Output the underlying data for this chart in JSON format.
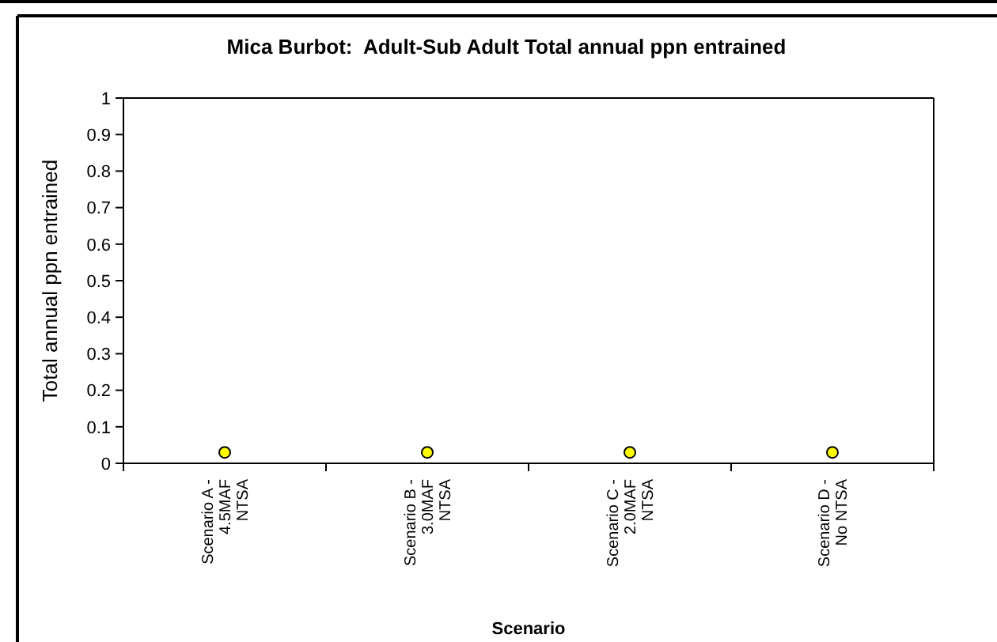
{
  "chart_data": {
    "type": "scatter",
    "title": "Mica Burbot:  Adult-Sub Adult Total annual ppn entrained",
    "xlabel": "Scenario",
    "ylabel": "Total annual ppn entrained",
    "categories": [
      "Scenario A - 4.5MAF NTSA",
      "Scenario B - 3.0MAF NTSA",
      "Scenario C - 2.0MAF NTSA",
      "Scenario D - No NTSA"
    ],
    "series": [
      {
        "color": "#ffff00",
        "values": [
          0.03,
          0.03,
          0.03,
          0.03
        ]
      }
    ],
    "marker": "circle",
    "ylim": [
      0,
      1
    ],
    "yticks": [
      0,
      0.1,
      0.2,
      0.3,
      0.4,
      0.5,
      0.6,
      0.7,
      0.8,
      0.9,
      1
    ],
    "grid": false
  }
}
